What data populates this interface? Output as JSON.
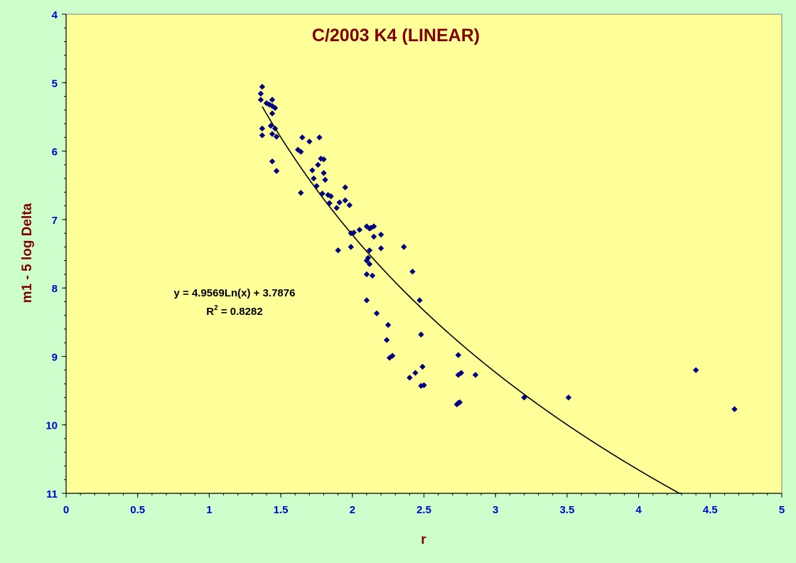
{
  "chart_data": {
    "type": "scatter",
    "title": "C/2003 K4 (LINEAR)",
    "xlabel": "r",
    "ylabel": "m1 - 5 log Delta",
    "xlim": [
      0,
      5
    ],
    "ylim": [
      4,
      11
    ],
    "y_inverted": true,
    "xticks": [
      "0",
      "0.5",
      "1",
      "1.5",
      "2",
      "2.5",
      "3",
      "3.5",
      "4",
      "4.5",
      "5"
    ],
    "yticks": [
      "4",
      "5",
      "6",
      "7",
      "8",
      "9",
      "10",
      "11"
    ],
    "grid": false,
    "legend": "none",
    "trendline": {
      "type": "logarithmic",
      "a": 4.9569,
      "b": 3.7876,
      "x_range": [
        1.37,
        4.3
      ],
      "equation": "y = 4.9569Ln(x) + 3.7876",
      "r2_prefix": "R",
      "r2_sup": "2",
      "r2_value": " = 0.8282"
    },
    "points": [
      [
        1.37,
        5.06
      ],
      [
        1.36,
        5.16
      ],
      [
        1.36,
        5.25
      ],
      [
        1.4,
        5.3
      ],
      [
        1.42,
        5.32
      ],
      [
        1.44,
        5.25
      ],
      [
        1.44,
        5.34
      ],
      [
        1.46,
        5.37
      ],
      [
        1.44,
        5.45
      ],
      [
        1.37,
        5.67
      ],
      [
        1.37,
        5.77
      ],
      [
        1.43,
        5.63
      ],
      [
        1.46,
        5.67
      ],
      [
        1.44,
        5.75
      ],
      [
        1.47,
        5.79
      ],
      [
        1.44,
        6.15
      ],
      [
        1.47,
        6.29
      ],
      [
        1.62,
        5.98
      ],
      [
        1.64,
        6.01
      ],
      [
        1.65,
        5.8
      ],
      [
        1.7,
        5.86
      ],
      [
        1.77,
        5.8
      ],
      [
        1.64,
        6.61
      ],
      [
        1.72,
        6.28
      ],
      [
        1.73,
        6.4
      ],
      [
        1.75,
        6.51
      ],
      [
        1.76,
        6.2
      ],
      [
        1.78,
        6.11
      ],
      [
        1.8,
        6.12
      ],
      [
        1.8,
        6.32
      ],
      [
        1.81,
        6.42
      ],
      [
        1.79,
        6.62
      ],
      [
        1.83,
        6.64
      ],
      [
        1.85,
        6.66
      ],
      [
        1.84,
        6.76
      ],
      [
        1.89,
        6.83
      ],
      [
        1.91,
        6.75
      ],
      [
        1.95,
        6.53
      ],
      [
        1.95,
        6.72
      ],
      [
        1.98,
        6.79
      ],
      [
        1.9,
        7.45
      ],
      [
        1.99,
        7.4
      ],
      [
        1.99,
        7.2
      ],
      [
        2.01,
        7.19
      ],
      [
        2.05,
        7.15
      ],
      [
        2.1,
        7.1
      ],
      [
        2.12,
        7.13
      ],
      [
        2.13,
        7.12
      ],
      [
        2.15,
        7.1
      ],
      [
        2.15,
        7.25
      ],
      [
        2.2,
        7.22
      ],
      [
        2.2,
        7.42
      ],
      [
        2.12,
        7.45
      ],
      [
        2.11,
        7.56
      ],
      [
        2.1,
        7.6
      ],
      [
        2.12,
        7.65
      ],
      [
        2.1,
        7.8
      ],
      [
        2.14,
        7.82
      ],
      [
        2.36,
        7.4
      ],
      [
        2.42,
        7.76
      ],
      [
        2.47,
        8.18
      ],
      [
        2.48,
        8.68
      ],
      [
        2.1,
        8.18
      ],
      [
        2.17,
        8.37
      ],
      [
        2.25,
        8.54
      ],
      [
        2.24,
        8.76
      ],
      [
        2.26,
        9.02
      ],
      [
        2.28,
        8.99
      ],
      [
        2.4,
        9.31
      ],
      [
        2.44,
        9.24
      ],
      [
        2.49,
        9.15
      ],
      [
        2.48,
        9.43
      ],
      [
        2.5,
        9.42
      ],
      [
        2.74,
        8.98
      ],
      [
        2.74,
        9.27
      ],
      [
        2.76,
        9.24
      ],
      [
        2.86,
        9.27
      ],
      [
        2.73,
        9.7
      ],
      [
        2.74,
        9.68
      ],
      [
        2.75,
        9.67
      ],
      [
        3.2,
        9.6
      ],
      [
        3.51,
        9.6
      ],
      [
        4.4,
        9.2
      ],
      [
        4.67,
        9.77
      ]
    ]
  }
}
